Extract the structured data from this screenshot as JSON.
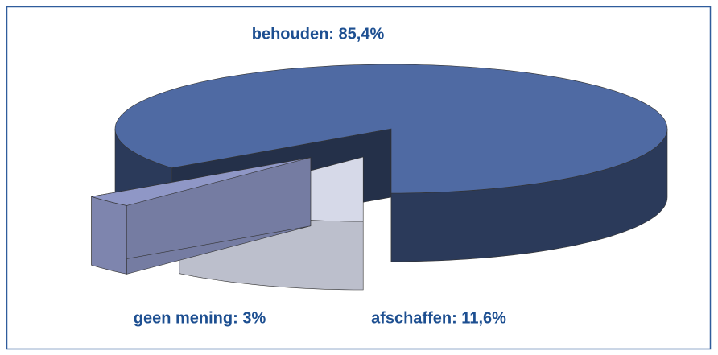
{
  "chart_data": {
    "type": "pie",
    "labels": [
      "behouden: 85,4%",
      "afschaffen: 11,6%",
      "geen mening: 3%"
    ],
    "values": [
      85.4,
      11.6,
      3
    ],
    "colors": [
      "#4f6aa3",
      "#d6d9e8",
      "#8f97c6"
    ]
  }
}
